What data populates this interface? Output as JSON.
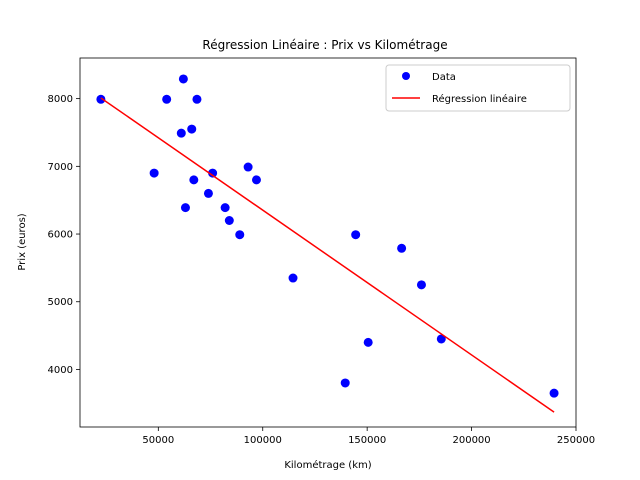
{
  "chart_data": {
    "type": "scatter",
    "title": "Régression Linéaire : Prix vs Kilométrage",
    "xlabel": "Kilométrage (km)",
    "ylabel": "Prix (euros)",
    "xlim": [
      12500,
      250000
    ],
    "ylim": [
      3150,
      8600
    ],
    "x_ticks": [
      50000,
      100000,
      150000,
      200000,
      250000
    ],
    "x_tick_labels": [
      "50000",
      "100000",
      "150000",
      "200000",
      "250000"
    ],
    "y_ticks": [
      4000,
      5000,
      6000,
      7000,
      8000
    ],
    "y_tick_labels": [
      "4000",
      "5000",
      "6000",
      "7000",
      "8000"
    ],
    "grid": false,
    "legend_position": "top-right",
    "series": [
      {
        "name": "Data",
        "kind": "scatter",
        "color": "#0000ff",
        "points": [
          {
            "x": 22500,
            "y": 7990
          },
          {
            "x": 48000,
            "y": 6900
          },
          {
            "x": 54000,
            "y": 7990
          },
          {
            "x": 61000,
            "y": 7490
          },
          {
            "x": 62000,
            "y": 8290
          },
          {
            "x": 63000,
            "y": 6390
          },
          {
            "x": 66000,
            "y": 7550
          },
          {
            "x": 67000,
            "y": 6800
          },
          {
            "x": 68500,
            "y": 7990
          },
          {
            "x": 74000,
            "y": 6600
          },
          {
            "x": 76000,
            "y": 6900
          },
          {
            "x": 82000,
            "y": 6390
          },
          {
            "x": 84000,
            "y": 6200
          },
          {
            "x": 89000,
            "y": 5990
          },
          {
            "x": 93000,
            "y": 6990
          },
          {
            "x": 97000,
            "y": 6800
          },
          {
            "x": 114500,
            "y": 5350
          },
          {
            "x": 139500,
            "y": 3800
          },
          {
            "x": 144500,
            "y": 5990
          },
          {
            "x": 150500,
            "y": 4400
          },
          {
            "x": 166500,
            "y": 5790
          },
          {
            "x": 176000,
            "y": 5250
          },
          {
            "x": 185500,
            "y": 4450
          },
          {
            "x": 239500,
            "y": 3650
          }
        ]
      },
      {
        "name": "Régression linéaire",
        "kind": "line",
        "color": "#ff0000",
        "points": [
          {
            "x": 22500,
            "y": 8010
          },
          {
            "x": 239500,
            "y": 3370
          }
        ]
      }
    ]
  }
}
